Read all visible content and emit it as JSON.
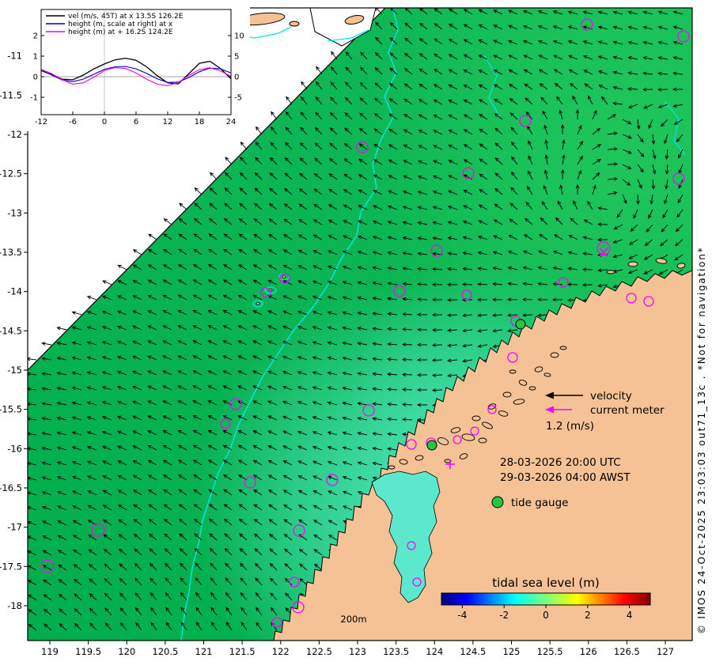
{
  "map": {
    "x_tick_labels": [
      "119",
      "119.5",
      "120",
      "120.5",
      "121",
      "121.5",
      "122",
      "122.5",
      "123",
      "123.5",
      "124",
      "124.5",
      "125",
      "125.5",
      "126",
      "126.5",
      "127"
    ],
    "y_tick_labels": [
      "-11",
      "-11.5",
      "-12",
      "-12.5",
      "-13",
      "-13.5",
      "-14",
      "-14.5",
      "-15",
      "-15.5",
      "-16",
      "-16.5",
      "-17",
      "-17.5",
      "-18"
    ],
    "depth_contour_label": "200m"
  },
  "annotations": {
    "velocity_label": "velocity",
    "current_meter_label": "current meter",
    "velocity_scale": "1.2 (m/s)",
    "datetime_utc": "28-03-2026 20:00 UTC",
    "datetime_local": "29-03-2026 04:00 AWST",
    "tide_gauge_label": "tide gauge"
  },
  "colorbar": {
    "title": "tidal sea level (m)",
    "tick_labels": [
      "-4",
      "-2",
      "0",
      "2",
      "4"
    ]
  },
  "watermark": "© IMOS 24-Oct-2025 23:03:03 out71_13c . *Not for navigation*",
  "inset": {
    "legend": [
      {
        "label": "vel (m/s, 45T) at x 13.5S 126.2E",
        "color": "#000000"
      },
      {
        "label": "height (m, scale at right) at x",
        "color": "#0000bb"
      },
      {
        "label": "height (m) at + 16.2S 124.2E",
        "color": "#ee00ee"
      }
    ],
    "x_tick_labels": [
      "-12",
      "-6",
      "0",
      "6",
      "12",
      "18",
      "24"
    ],
    "left_tick_labels": [
      "2",
      "1",
      "0",
      "-1"
    ],
    "right_tick_labels": [
      "10",
      "5",
      "0",
      "-5"
    ]
  },
  "chart_data": [
    {
      "type": "line",
      "title": "",
      "x": [
        -12,
        -10,
        -8,
        -6,
        -4,
        -2,
        0,
        2,
        4,
        6,
        8,
        10,
        12,
        14,
        16,
        18,
        20,
        22,
        24
      ],
      "series": [
        {
          "name": "vel (m/s, 45T) at x 13.5S 126.2E",
          "axis": "left",
          "color": "#000000",
          "values": [
            0.3,
            0.1,
            -0.12,
            -0.15,
            0.08,
            0.38,
            0.62,
            0.82,
            0.9,
            0.8,
            0.48,
            0.05,
            -0.3,
            -0.35,
            0.15,
            0.65,
            0.75,
            0.4,
            -0.1
          ]
        },
        {
          "name": "height (m, scale at right) at x",
          "axis": "right",
          "color": "#0000bb",
          "values": [
            1.6,
            0.4,
            -0.8,
            -1.2,
            -0.6,
            0.6,
            1.8,
            2.4,
            2.5,
            1.9,
            0.8,
            -0.5,
            -1.4,
            -1.3,
            -0.2,
            1.2,
            2.1,
            1.9,
            0.9
          ]
        },
        {
          "name": "height (m) at + 16.2S 124.2E",
          "axis": "left",
          "color": "#ee00ee",
          "values": [
            0.36,
            0.15,
            -0.15,
            -0.36,
            -0.3,
            -0.02,
            0.3,
            0.44,
            0.4,
            0.18,
            -0.12,
            -0.36,
            -0.44,
            -0.28,
            0.06,
            0.34,
            0.44,
            0.28,
            0.02
          ]
        }
      ],
      "x_ticks": [
        -12,
        -6,
        0,
        6,
        12,
        18,
        24
      ],
      "left_axis": {
        "ticks": [
          2,
          1,
          0,
          -1
        ]
      },
      "right_axis": {
        "ticks": [
          10,
          5,
          0,
          -5
        ]
      },
      "legend_position": "top-left",
      "grid": false
    },
    {
      "type": "colorbar",
      "title": "tidal sea level (m)",
      "range": [
        -5,
        5
      ],
      "ticks": [
        -4,
        -2,
        0,
        2,
        4
      ],
      "colormap": "jet",
      "orientation": "horizontal"
    }
  ],
  "colors": {
    "ocean": "#00ae4d",
    "ocean_light": "#12bd58",
    "land": "#f4c294",
    "bay_water": "#5be8cd",
    "contour": "#00e5e5",
    "current_meter": "#ff00ff",
    "tide_gauge": "#22c93e",
    "arrow": "#000000",
    "colorbar_title": "#067d2e"
  }
}
